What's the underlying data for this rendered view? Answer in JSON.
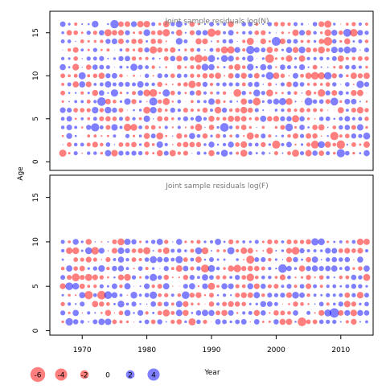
{
  "chart_data": {
    "type": "scatter",
    "encoding": "bubble",
    "shared_xlabel": "Year",
    "shared_ylabel": "Age",
    "xlim": [
      1965,
      2015
    ],
    "x_ticks": [
      1970,
      1980,
      1990,
      2000,
      2010
    ],
    "x_tick_labels": [
      "1970",
      "1980",
      "1990",
      "2000",
      "2010"
    ],
    "positive_color": "#0000ff",
    "negative_color": "#ff0000",
    "bubble_alpha": 0.5,
    "panels": [
      {
        "title": "Joint sample residuals log(N)",
        "ylim": [
          -1,
          17.5
        ],
        "y_ticks": [
          0,
          5,
          10,
          15
        ],
        "y_tick_labels": [
          "0",
          "5",
          "10",
          "15"
        ],
        "x_range": [
          1967,
          2014
        ],
        "ages": [
          1,
          16
        ],
        "seed": 12345
      },
      {
        "title": "Joint sample residuals log(F)",
        "ylim": [
          -0.5,
          17.5
        ],
        "y_ticks": [
          0,
          5,
          10,
          15
        ],
        "y_tick_labels": [
          "0",
          "5",
          "10",
          "15"
        ],
        "x_range": [
          1967,
          2014
        ],
        "ages": [
          1,
          10
        ],
        "seed": 67890
      }
    ],
    "legend": {
      "placement": "bottom-left",
      "entries": [
        {
          "value": -6,
          "label": "-6"
        },
        {
          "value": -4,
          "label": "-4"
        },
        {
          "value": -2,
          "label": "-2"
        },
        {
          "value": 0,
          "label": "0"
        },
        {
          "value": 2,
          "label": "2"
        },
        {
          "value": 4,
          "label": "4"
        }
      ]
    }
  }
}
